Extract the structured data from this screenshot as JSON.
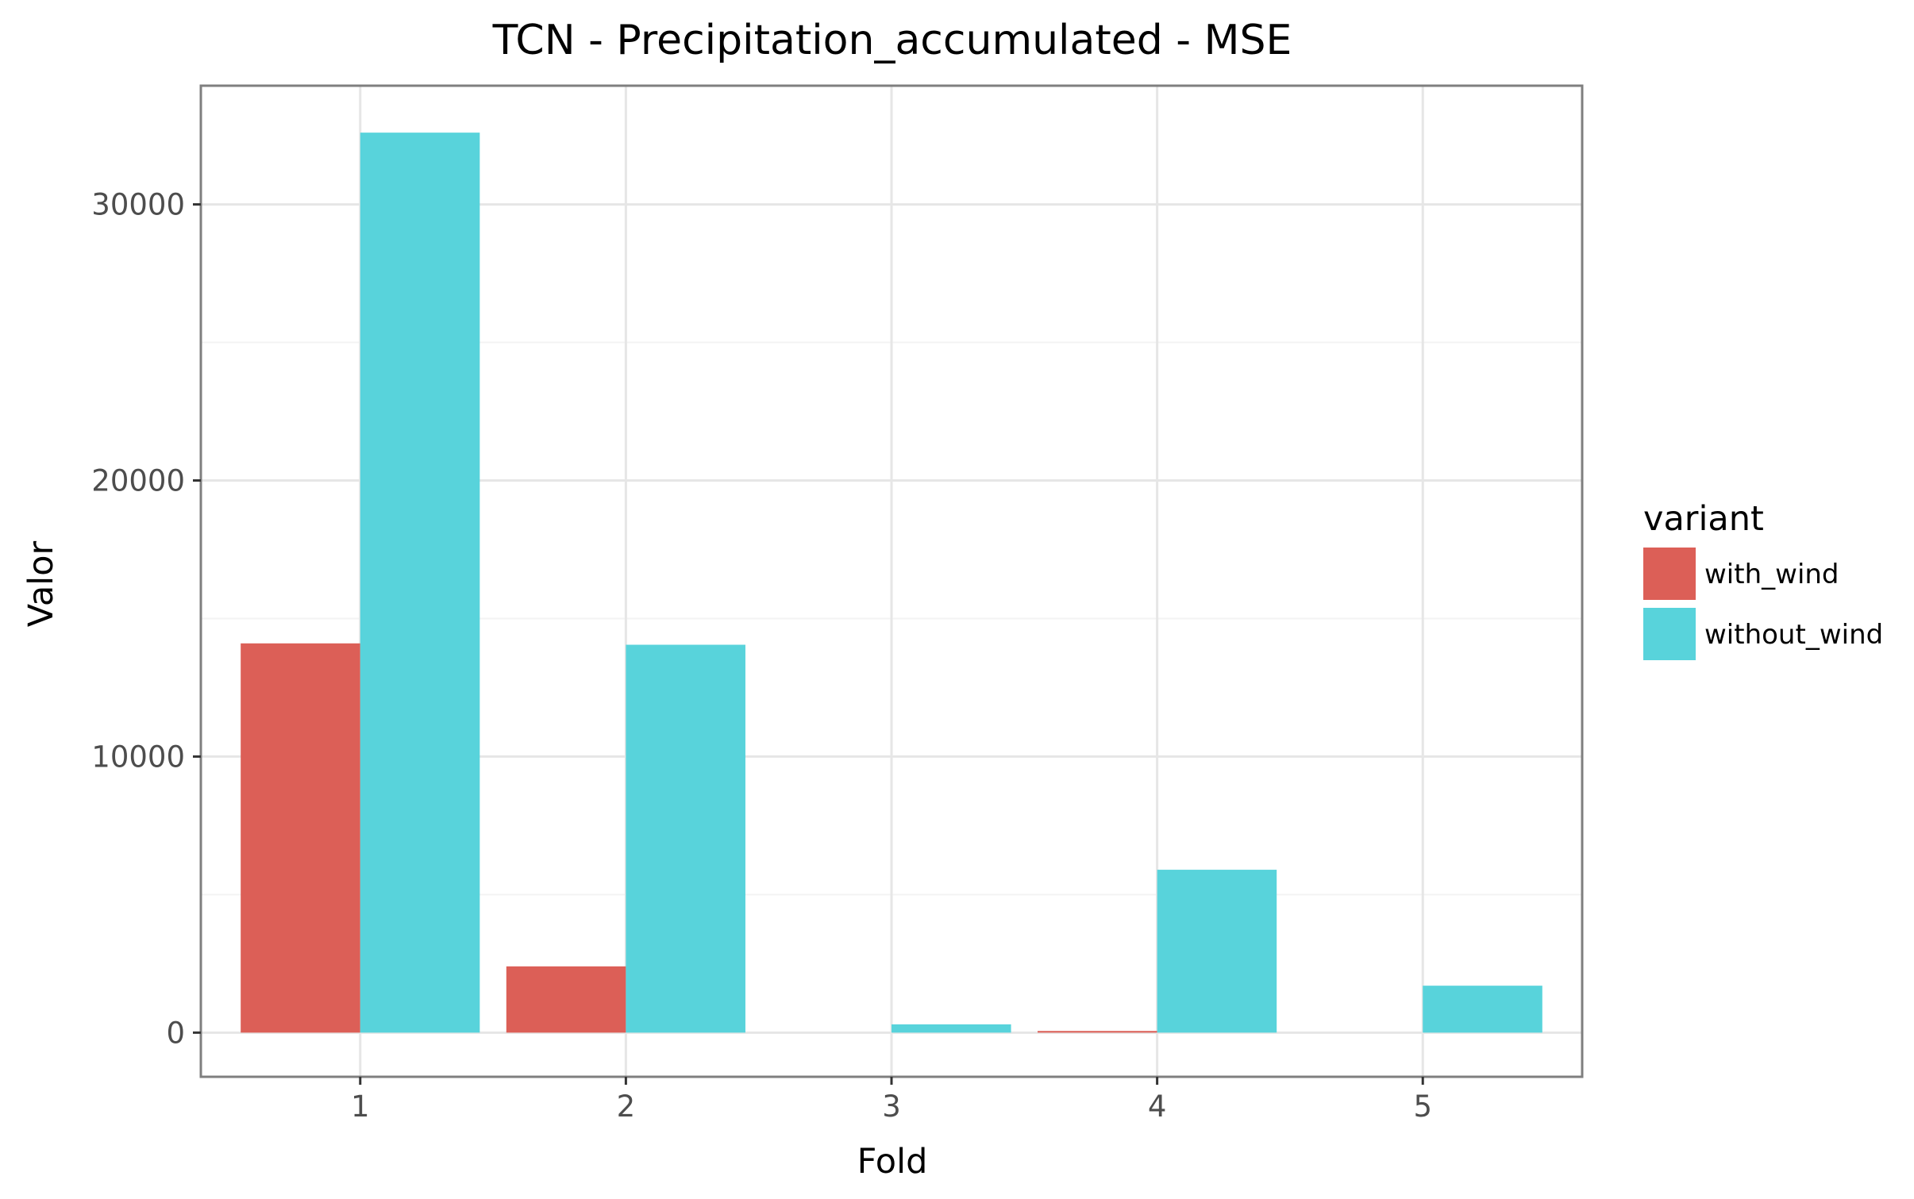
{
  "chart_data": {
    "type": "bar",
    "title": "TCN - Precipitation_accumulated - MSE",
    "xlabel": "Fold",
    "ylabel": "Valor",
    "categories": [
      "1",
      "2",
      "3",
      "4",
      "5"
    ],
    "series": [
      {
        "name": "with_wind",
        "color": "#dc5f57",
        "values": [
          14100,
          2400,
          0,
          60,
          0
        ]
      },
      {
        "name": "without_wind",
        "color": "#58d3db",
        "values": [
          32600,
          14050,
          300,
          5900,
          1700
        ]
      }
    ],
    "yticks": [
      0,
      10000,
      20000,
      30000
    ],
    "ytick_labels": [
      "0",
      "10000",
      "20000",
      "30000"
    ],
    "ylim": [
      -1600,
      34300
    ],
    "legend": {
      "title": "variant",
      "position": "right"
    },
    "grid": true,
    "colors": {
      "panel_border": "#7f7f7f",
      "grid_major": "#e6e6e6",
      "grid_minor": "#f3f3f3"
    }
  }
}
